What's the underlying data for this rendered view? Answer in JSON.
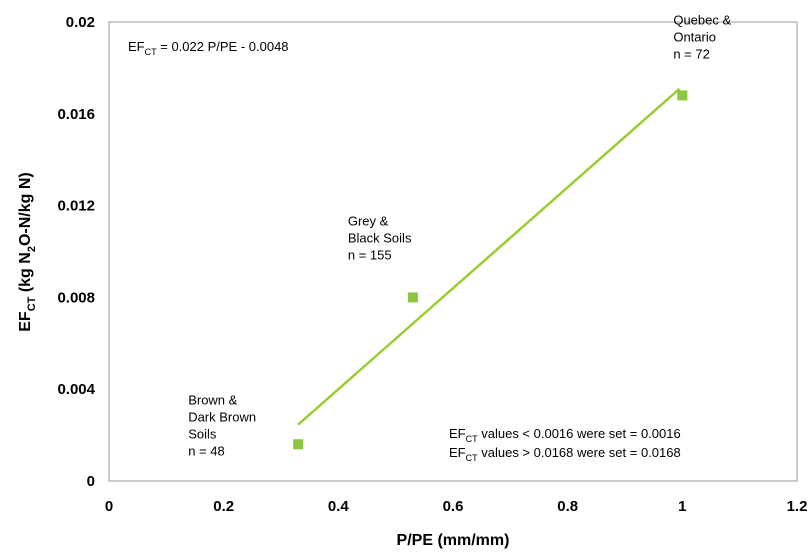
{
  "chart_data": {
    "type": "scatter",
    "xlabel": "P/PE (mm/mm)",
    "ylabel_parts": {
      "main": "EF",
      "sub": "CT",
      "mid": " (kg N",
      "sub2": "2",
      "tail": "O-N/kg N)"
    },
    "xlim": [
      0,
      1.2
    ],
    "ylim": [
      0,
      0.02
    ],
    "x_ticks": [
      "0",
      "0.2",
      "0.4",
      "0.6",
      "0.8",
      "1",
      "1.2"
    ],
    "y_ticks": [
      "0",
      "0.004",
      "0.008",
      "0.012",
      "0.016",
      "0.02"
    ],
    "x_tick_values": [
      0,
      0.2,
      0.4,
      0.6,
      0.8,
      1.0,
      1.2
    ],
    "y_tick_values": [
      0,
      0.004,
      0.008,
      0.012,
      0.016,
      0.02
    ],
    "grid": false,
    "marker_color": "#8cc63f",
    "line_color": "#9acd32",
    "points": [
      {
        "x": 0.33,
        "y": 0.0016,
        "label_lines": [
          "Brown &",
          "Dark Brown",
          "Soils",
          "n = 48"
        ]
      },
      {
        "x": 0.53,
        "y": 0.008,
        "label_lines": [
          "Grey &",
          "Black Soils",
          "n = 155"
        ]
      },
      {
        "x": 1.0,
        "y": 0.0168,
        "label_lines": [
          "Quebec &",
          "Ontario",
          "n = 72"
        ]
      }
    ],
    "trendline": {
      "slope": 0.022,
      "intercept": -0.0048,
      "x_range": [
        0.33,
        0.995
      ]
    },
    "equation": {
      "lhs": "EF",
      "lhs_sub": "CT",
      "rhs": " = 0.022 P/PE - 0.0048"
    },
    "notes": [
      {
        "lhs": "EF",
        "lhs_sub": "CT",
        "rhs": " values < 0.0016 were set = 0.0016"
      },
      {
        "lhs": "EF",
        "lhs_sub": "CT",
        "rhs": " values > 0.0168 were set = 0.0168"
      }
    ]
  }
}
